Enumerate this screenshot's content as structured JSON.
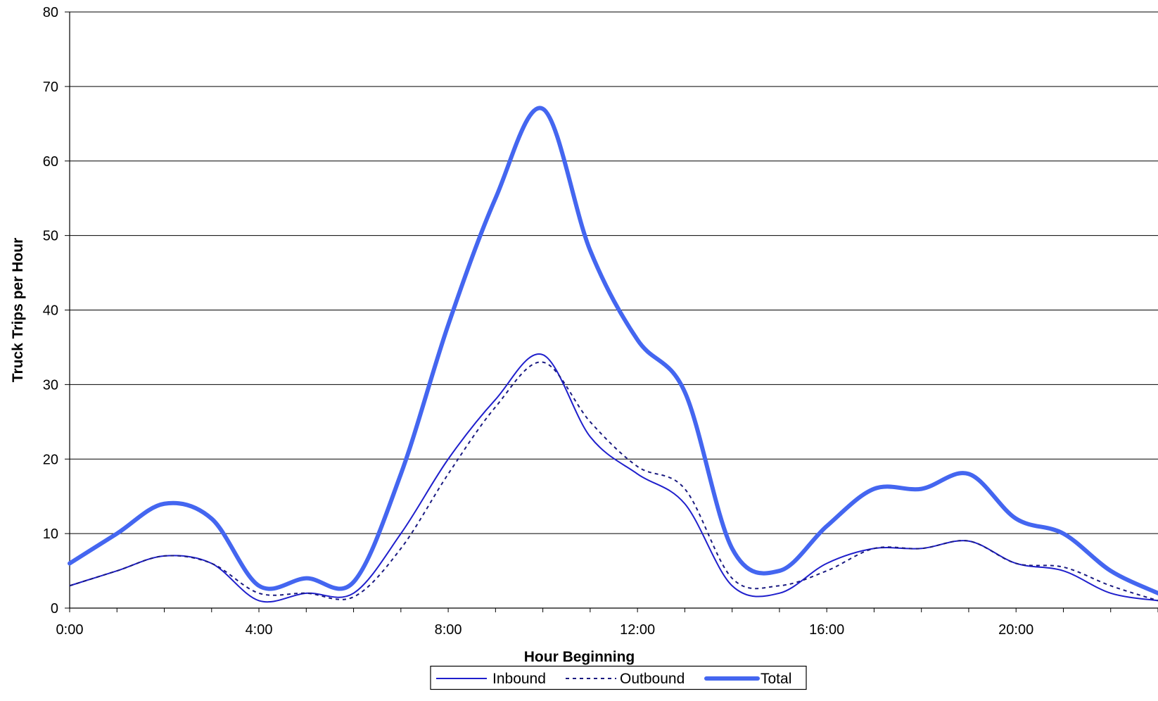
{
  "chart_data": {
    "type": "line",
    "xlabel": "Hour Beginning",
    "ylabel": "Truck Trips per Hour",
    "ylim": [
      0,
      80
    ],
    "y_ticks": [
      0,
      10,
      20,
      30,
      40,
      50,
      60,
      70,
      80
    ],
    "x_ticks": [
      {
        "hour": 0,
        "label": "0:00"
      },
      {
        "hour": 4,
        "label": "4:00"
      },
      {
        "hour": 8,
        "label": "8:00"
      },
      {
        "hour": 12,
        "label": "12:00"
      },
      {
        "hour": 16,
        "label": "16:00"
      },
      {
        "hour": 20,
        "label": "20:00"
      }
    ],
    "x": [
      0,
      1,
      2,
      3,
      4,
      5,
      6,
      7,
      8,
      9,
      10,
      11,
      12,
      13,
      14,
      15,
      16,
      17,
      18,
      19,
      20,
      21,
      22,
      23
    ],
    "grid": "horizontal",
    "legend_position": "bottom",
    "series": [
      {
        "name": "Inbound",
        "style": "thin-solid",
        "color": "#1F1FCC",
        "values": [
          3,
          5,
          7,
          6,
          1,
          2,
          2,
          10,
          20,
          28,
          34,
          23,
          18,
          14,
          3,
          2,
          6,
          8,
          8,
          9,
          6,
          5,
          2,
          1
        ]
      },
      {
        "name": "Outbound",
        "style": "dotted",
        "color": "#1A1A80",
        "values": [
          3,
          5,
          7,
          6,
          2,
          2,
          1.5,
          8,
          18,
          27,
          33,
          25,
          19,
          16,
          4,
          3,
          5,
          8,
          8,
          9,
          6,
          5.5,
          3,
          1
        ]
      },
      {
        "name": "Total",
        "style": "thick-solid",
        "color": "#4466F0",
        "values": [
          6,
          10,
          14,
          12,
          3,
          4,
          3.5,
          18,
          38,
          55,
          67,
          48,
          36,
          29,
          8,
          5,
          11,
          16,
          16,
          18,
          12,
          10,
          5,
          2
        ]
      }
    ]
  }
}
